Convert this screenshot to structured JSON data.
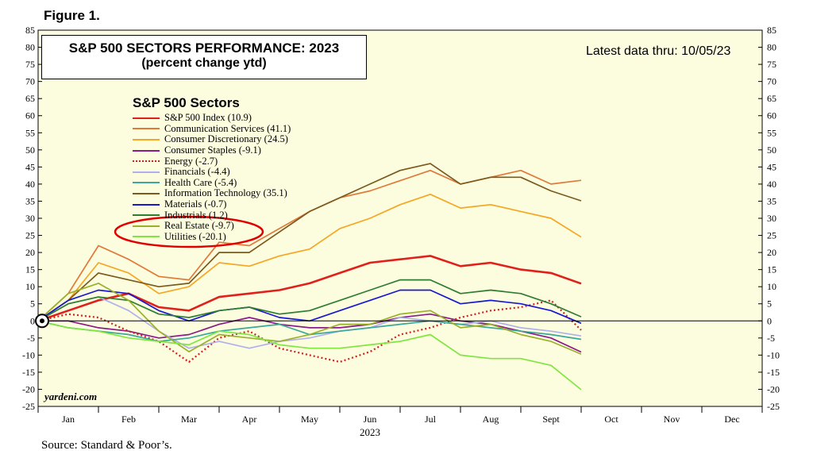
{
  "figure_label": "Figure 1.",
  "title_line1": "S&P 500 SECTORS PERFORMANCE: 2023",
  "title_line2": "(percent change ytd)",
  "latest": "Latest data thru: 10/05/23",
  "legend_title": "S&P 500 Sectors",
  "credit": "yardeni.com",
  "source": "Source: Standard & Poor’s.",
  "annotation_color": "#e00000",
  "chart_data": {
    "type": "line",
    "ylim": [
      -25,
      85
    ],
    "yticks": [
      -25,
      -20,
      -15,
      -10,
      -5,
      0,
      5,
      10,
      15,
      20,
      25,
      30,
      35,
      40,
      45,
      50,
      55,
      60,
      65,
      70,
      75,
      80,
      85
    ],
    "x_months": [
      "Jan",
      "Feb",
      "Mar",
      "Apr",
      "May",
      "Jun",
      "Jul",
      "Aug",
      "Sept",
      "Oct",
      "Nov",
      "Dec"
    ],
    "xlabel": "2023",
    "xlim": [
      0,
      12
    ],
    "legend": "upper-left",
    "grid": false,
    "series": [
      {
        "name": "S&P 500 Index (10.9)",
        "color": "#e0201b",
        "dotted": false,
        "points": [
          [
            0,
            0
          ],
          [
            0.5,
            3
          ],
          [
            1,
            6
          ],
          [
            1.5,
            8
          ],
          [
            2,
            4
          ],
          [
            2.5,
            3
          ],
          [
            3,
            7
          ],
          [
            3.5,
            8
          ],
          [
            4,
            9
          ],
          [
            4.5,
            11
          ],
          [
            5,
            14
          ],
          [
            5.5,
            17
          ],
          [
            6,
            18
          ],
          [
            6.5,
            19
          ],
          [
            7,
            16
          ],
          [
            7.5,
            17
          ],
          [
            8,
            15
          ],
          [
            8.5,
            14
          ],
          [
            9,
            10.9
          ]
        ]
      },
      {
        "name": "Communication Services (41.1)",
        "color": "#e07a3a",
        "dotted": false,
        "points": [
          [
            0,
            0
          ],
          [
            0.5,
            8
          ],
          [
            1,
            22
          ],
          [
            1.5,
            18
          ],
          [
            2,
            13
          ],
          [
            2.5,
            12
          ],
          [
            3,
            23
          ],
          [
            3.5,
            22
          ],
          [
            4,
            27
          ],
          [
            4.5,
            32
          ],
          [
            5,
            36
          ],
          [
            5.5,
            38
          ],
          [
            6,
            41
          ],
          [
            6.5,
            44
          ],
          [
            7,
            40
          ],
          [
            7.5,
            42
          ],
          [
            8,
            44
          ],
          [
            8.5,
            40
          ],
          [
            9,
            41.1
          ]
        ]
      },
      {
        "name": "Consumer Discretionary (24.5)",
        "color": "#f5a623",
        "dotted": false,
        "points": [
          [
            0,
            0
          ],
          [
            0.5,
            6
          ],
          [
            1,
            17
          ],
          [
            1.5,
            14
          ],
          [
            2,
            8
          ],
          [
            2.5,
            10
          ],
          [
            3,
            17
          ],
          [
            3.5,
            16
          ],
          [
            4,
            19
          ],
          [
            4.5,
            21
          ],
          [
            5,
            27
          ],
          [
            5.5,
            30
          ],
          [
            6,
            34
          ],
          [
            6.5,
            37
          ],
          [
            7,
            33
          ],
          [
            7.5,
            34
          ],
          [
            8,
            32
          ],
          [
            8.5,
            30
          ],
          [
            9,
            24.5
          ]
        ]
      },
      {
        "name": "Consumer Staples (-9.1)",
        "color": "#8b1a8b",
        "dotted": false,
        "points": [
          [
            0,
            0
          ],
          [
            0.5,
            0
          ],
          [
            1,
            -2
          ],
          [
            1.5,
            -3
          ],
          [
            2,
            -5
          ],
          [
            2.5,
            -4
          ],
          [
            3,
            -1
          ],
          [
            3.5,
            1
          ],
          [
            4,
            -1
          ],
          [
            4.5,
            -2
          ],
          [
            5,
            -2
          ],
          [
            5.5,
            -1
          ],
          [
            6,
            1
          ],
          [
            6.5,
            2
          ],
          [
            7,
            0
          ],
          [
            7.5,
            -1
          ],
          [
            8,
            -3
          ],
          [
            8.5,
            -5
          ],
          [
            9,
            -9.1
          ]
        ]
      },
      {
        "name": "Energy (-2.7)",
        "color": "#d02020",
        "dotted": true,
        "points": [
          [
            0,
            0
          ],
          [
            0.5,
            2
          ],
          [
            1,
            1
          ],
          [
            1.5,
            -3
          ],
          [
            2,
            -6
          ],
          [
            2.5,
            -12
          ],
          [
            3,
            -5
          ],
          [
            3.5,
            -3
          ],
          [
            4,
            -8
          ],
          [
            4.5,
            -10
          ],
          [
            5,
            -12
          ],
          [
            5.5,
            -9
          ],
          [
            6,
            -4
          ],
          [
            6.5,
            -2
          ],
          [
            7,
            1
          ],
          [
            7.5,
            3
          ],
          [
            8,
            4
          ],
          [
            8.5,
            6
          ],
          [
            9,
            -2.7
          ]
        ]
      },
      {
        "name": "Financials (-4.4)",
        "color": "#b0b0ee",
        "dotted": false,
        "points": [
          [
            0,
            0
          ],
          [
            0.5,
            5
          ],
          [
            1,
            7
          ],
          [
            1.5,
            3
          ],
          [
            2,
            -3
          ],
          [
            2.5,
            -8
          ],
          [
            3,
            -6
          ],
          [
            3.5,
            -8
          ],
          [
            4,
            -6
          ],
          [
            4.5,
            -5
          ],
          [
            5,
            -3
          ],
          [
            5.5,
            -2
          ],
          [
            6,
            1
          ],
          [
            6.5,
            0
          ],
          [
            7,
            -1
          ],
          [
            7.5,
            0
          ],
          [
            8,
            -2
          ],
          [
            8.5,
            -3
          ],
          [
            9,
            -4.4
          ]
        ]
      },
      {
        "name": "Health Care (-5.4)",
        "color": "#3aa89a",
        "dotted": false,
        "points": [
          [
            0,
            0
          ],
          [
            0.5,
            -2
          ],
          [
            1,
            -3
          ],
          [
            1.5,
            -4
          ],
          [
            2,
            -6
          ],
          [
            2.5,
            -5
          ],
          [
            3,
            -3
          ],
          [
            3.5,
            -2
          ],
          [
            4,
            -1
          ],
          [
            4.5,
            -4
          ],
          [
            5,
            -3
          ],
          [
            5.5,
            -2
          ],
          [
            6,
            -1
          ],
          [
            6.5,
            0
          ],
          [
            7,
            -1
          ],
          [
            7.5,
            -2
          ],
          [
            8,
            -3
          ],
          [
            8.5,
            -4
          ],
          [
            9,
            -5.4
          ]
        ]
      },
      {
        "name": "Information Technology (35.1)",
        "color": "#7b5a1e",
        "dotted": false,
        "points": [
          [
            0,
            0
          ],
          [
            0.5,
            6
          ],
          [
            1,
            14
          ],
          [
            1.5,
            12
          ],
          [
            2,
            10
          ],
          [
            2.5,
            11
          ],
          [
            3,
            20
          ],
          [
            3.5,
            20
          ],
          [
            4,
            26
          ],
          [
            4.5,
            32
          ],
          [
            5,
            36
          ],
          [
            5.5,
            40
          ],
          [
            6,
            44
          ],
          [
            6.5,
            46
          ],
          [
            7,
            40
          ],
          [
            7.5,
            42
          ],
          [
            8,
            42
          ],
          [
            8.5,
            38
          ],
          [
            9,
            35.1
          ]
        ]
      },
      {
        "name": "Materials (-0.7)",
        "color": "#1818d0",
        "dotted": false,
        "points": [
          [
            0,
            0
          ],
          [
            0.5,
            6
          ],
          [
            1,
            9
          ],
          [
            1.5,
            8
          ],
          [
            2,
            3
          ],
          [
            2.5,
            0
          ],
          [
            3,
            3
          ],
          [
            3.5,
            4
          ],
          [
            4,
            1
          ],
          [
            4.5,
            0
          ],
          [
            5,
            3
          ],
          [
            5.5,
            6
          ],
          [
            6,
            9
          ],
          [
            6.5,
            9
          ],
          [
            7,
            5
          ],
          [
            7.5,
            6
          ],
          [
            8,
            5
          ],
          [
            8.5,
            3
          ],
          [
            9,
            -0.7
          ]
        ]
      },
      {
        "name": "Industrials (1.2)",
        "color": "#2e7d32",
        "dotted": false,
        "points": [
          [
            0,
            0
          ],
          [
            0.5,
            5
          ],
          [
            1,
            7
          ],
          [
            1.5,
            6
          ],
          [
            2,
            2
          ],
          [
            2.5,
            1
          ],
          [
            3,
            3
          ],
          [
            3.5,
            4
          ],
          [
            4,
            2
          ],
          [
            4.5,
            3
          ],
          [
            5,
            6
          ],
          [
            5.5,
            9
          ],
          [
            6,
            12
          ],
          [
            6.5,
            12
          ],
          [
            7,
            8
          ],
          [
            7.5,
            9
          ],
          [
            8,
            8
          ],
          [
            8.5,
            5
          ],
          [
            9,
            1.2
          ]
        ]
      },
      {
        "name": "Real Estate (-9.7)",
        "color": "#9ab02a",
        "dotted": false,
        "points": [
          [
            0,
            0
          ],
          [
            0.5,
            8
          ],
          [
            1,
            11
          ],
          [
            1.5,
            6
          ],
          [
            2,
            -3
          ],
          [
            2.5,
            -9
          ],
          [
            3,
            -4
          ],
          [
            3.5,
            -5
          ],
          [
            4,
            -6
          ],
          [
            4.5,
            -4
          ],
          [
            5,
            -1
          ],
          [
            5.5,
            -1
          ],
          [
            6,
            2
          ],
          [
            6.5,
            3
          ],
          [
            7,
            -2
          ],
          [
            7.5,
            -1
          ],
          [
            8,
            -4
          ],
          [
            8.5,
            -6
          ],
          [
            9,
            -9.7
          ]
        ]
      },
      {
        "name": "Utilities (-20.1)",
        "color": "#7fe640",
        "dotted": false,
        "points": [
          [
            0,
            0
          ],
          [
            0.5,
            -2
          ],
          [
            1,
            -3
          ],
          [
            1.5,
            -5
          ],
          [
            2,
            -6
          ],
          [
            2.5,
            -7
          ],
          [
            3,
            -3
          ],
          [
            3.5,
            -4
          ],
          [
            4,
            -7
          ],
          [
            4.5,
            -8
          ],
          [
            5,
            -8
          ],
          [
            5.5,
            -7
          ],
          [
            6,
            -6
          ],
          [
            6.5,
            -4
          ],
          [
            7,
            -10
          ],
          [
            7.5,
            -11
          ],
          [
            8,
            -11
          ],
          [
            8.5,
            -13
          ],
          [
            9,
            -20.1
          ]
        ]
      }
    ]
  }
}
